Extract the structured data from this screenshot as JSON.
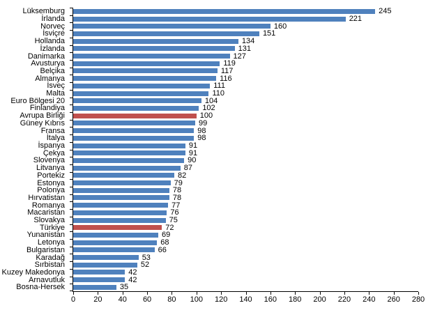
{
  "chart_data": {
    "type": "bar",
    "orientation": "horizontal",
    "title": "",
    "xlabel": "",
    "ylabel": "",
    "xlim": [
      0,
      280
    ],
    "x_ticks": [
      0,
      20,
      40,
      60,
      80,
      100,
      120,
      140,
      160,
      180,
      200,
      220,
      240,
      260,
      280
    ],
    "grid": false,
    "legend": "none",
    "value_labels_shown": true,
    "bar_color": "#4f81bd",
    "highlight_color": "#c0504d",
    "highlighted": [
      "Avrupa Birliği",
      "Türkiye"
    ],
    "categories": [
      "Lüksemburg",
      "İrlanda",
      "Norveç",
      "İsviçre",
      "Hollanda",
      "İzlanda",
      "Danimarka",
      "Avusturya",
      "Belçika",
      "Almanya",
      "İsveç",
      "Malta",
      "Euro Bölgesi 20",
      "Finlandiya",
      "Avrupa Birliği",
      "Güney Kıbrıs",
      "Fransa",
      "İtalya",
      "İspanya",
      "Çekya",
      "Slovenya",
      "Litvanya",
      "Portekiz",
      "Estonya",
      "Polonya",
      "Hırvatistan",
      "Romanya",
      "Macaristan",
      "Slovakya",
      "Türkiye",
      "Yunanistan",
      "Letonya",
      "Bulgaristan",
      "Karadağ",
      "Sırbistan",
      "Kuzey Makedonya",
      "Arnavutluk",
      "Bosna-Hersek"
    ],
    "values": [
      245,
      221,
      160,
      151,
      134,
      131,
      127,
      119,
      117,
      116,
      111,
      110,
      104,
      102,
      100,
      99,
      98,
      98,
      91,
      91,
      90,
      87,
      82,
      79,
      78,
      78,
      77,
      76,
      75,
      72,
      69,
      68,
      66,
      53,
      52,
      42,
      42,
      35
    ]
  }
}
